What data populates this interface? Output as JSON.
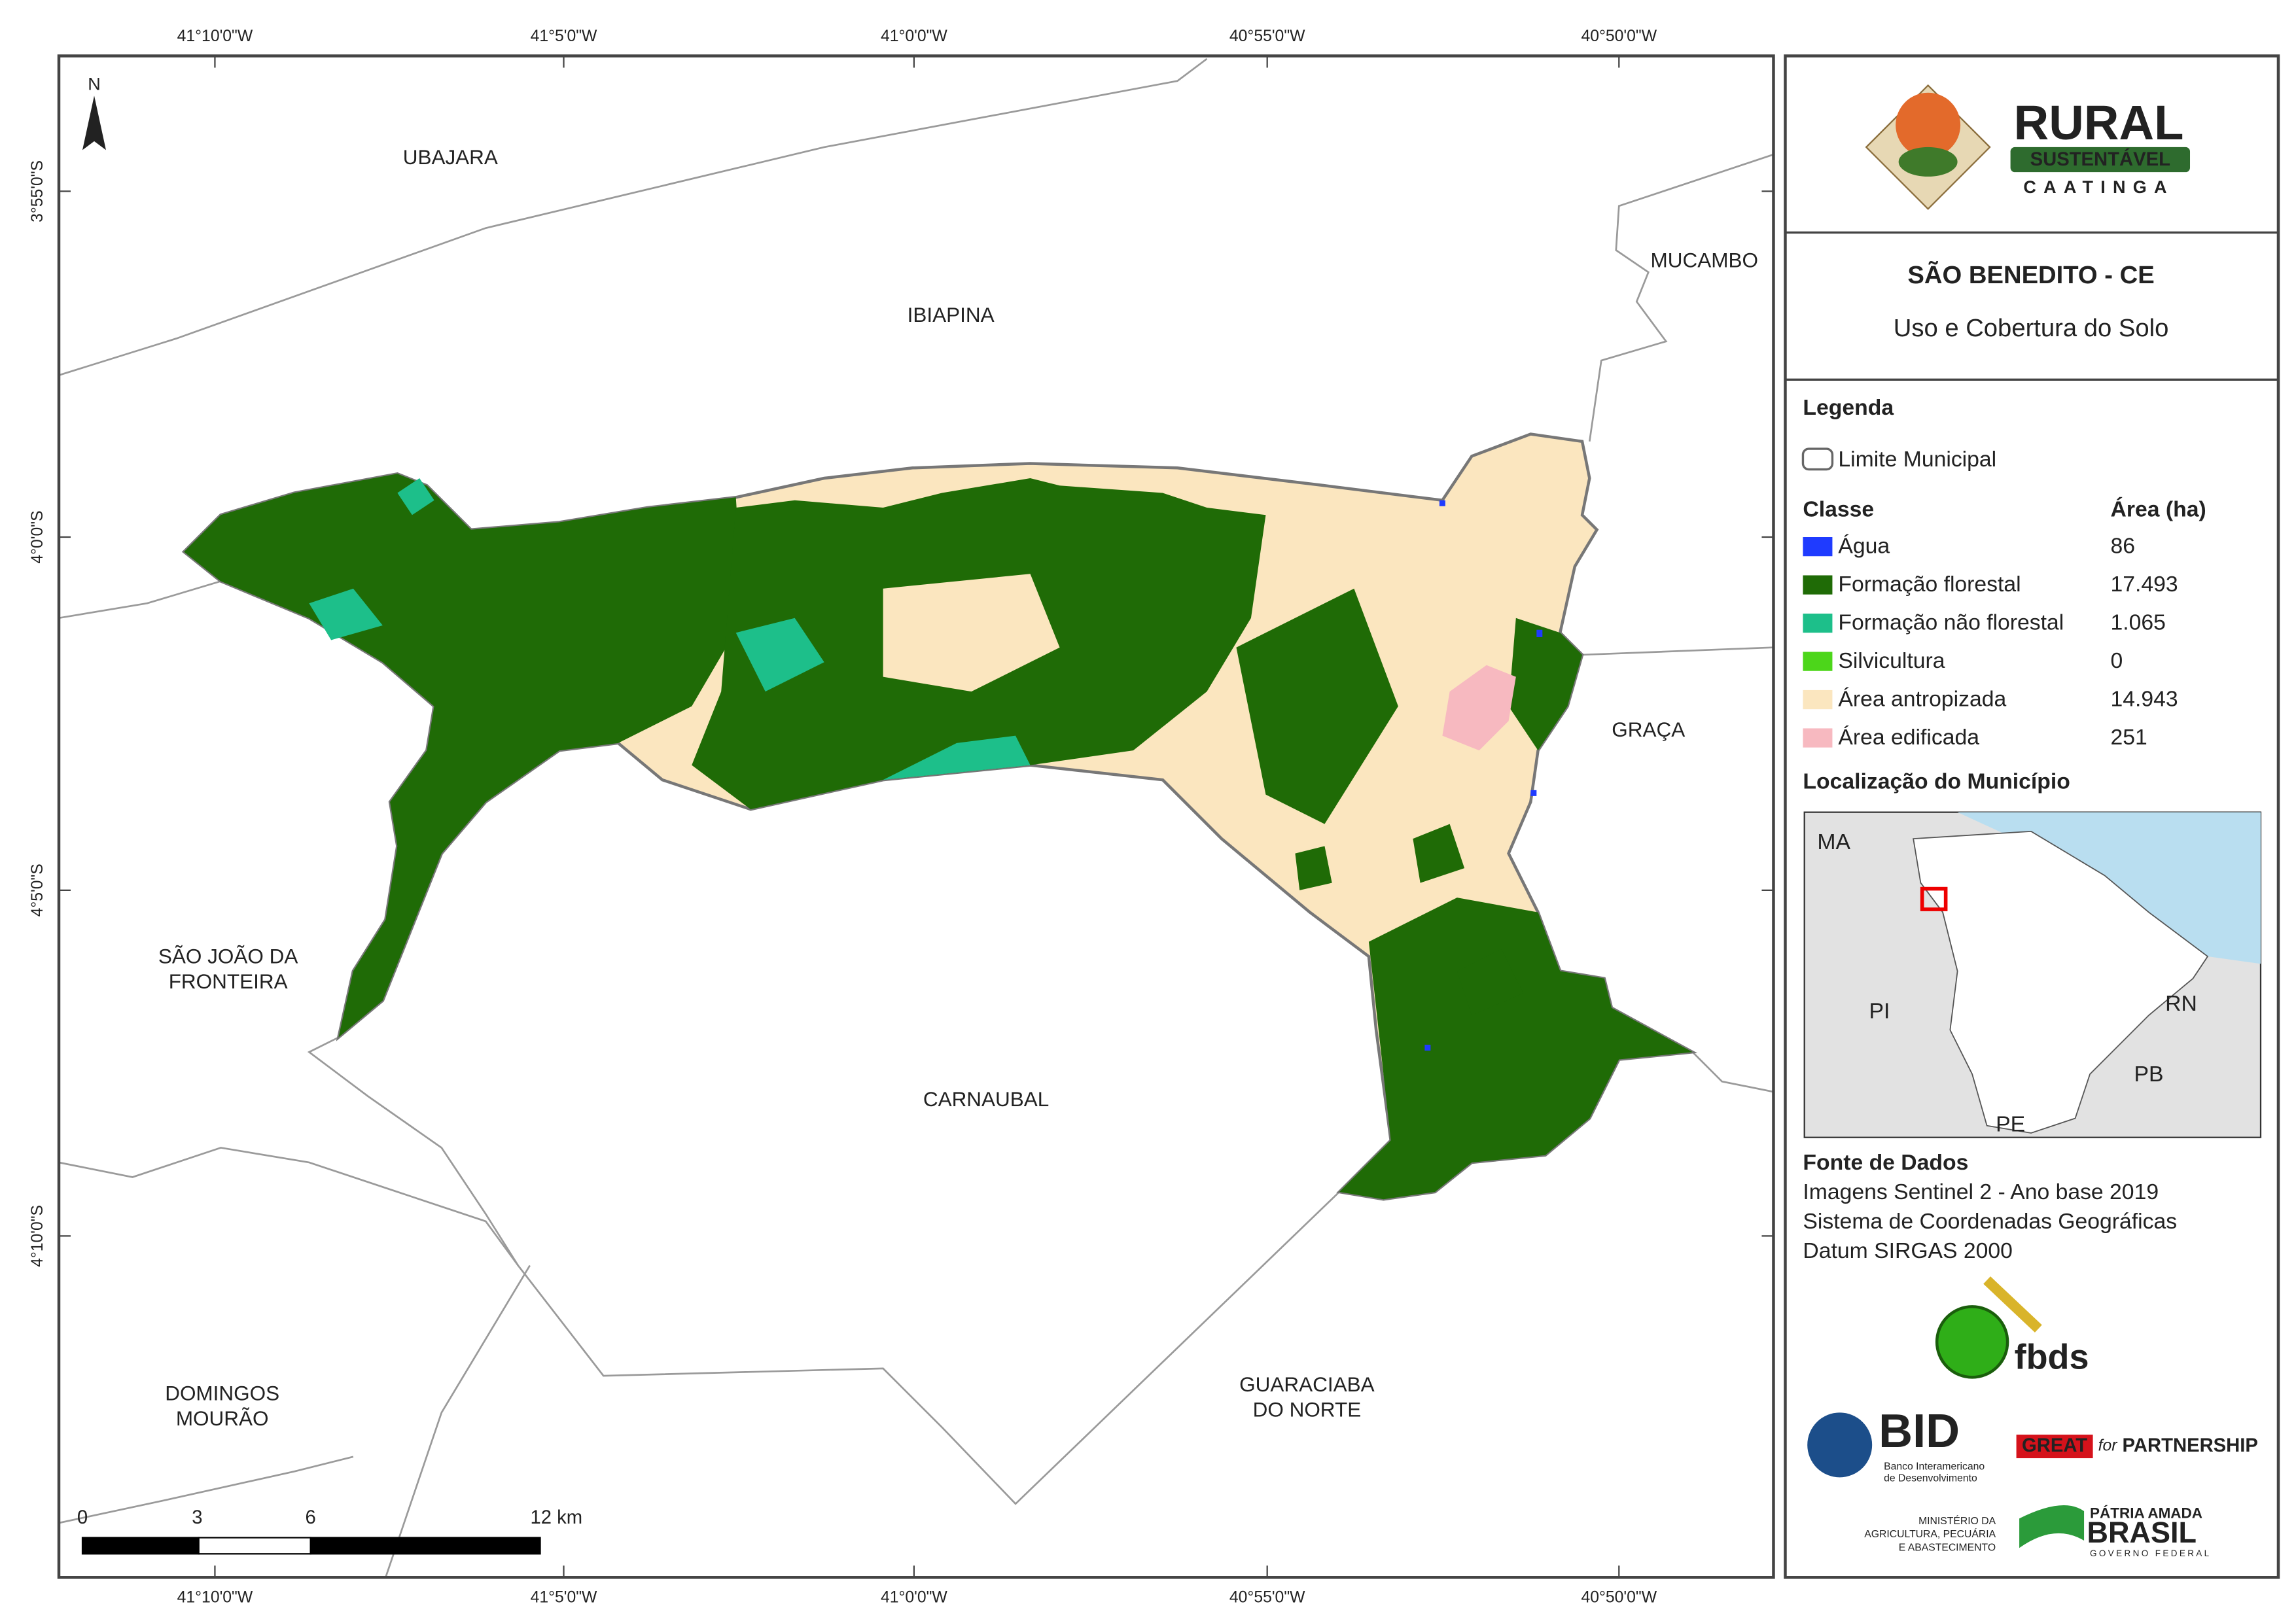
{
  "map": {
    "north": "N",
    "grid_labels": {
      "top": [
        "41°10'0\"W",
        "41°5'0\"W",
        "41°0'0\"W",
        "40°55'0\"W",
        "40°50'0\"W"
      ],
      "bottom": [
        "41°10'0\"W",
        "41°5'0\"W",
        "41°0'0\"W",
        "40°55'0\"W",
        "40°50'0\"W"
      ],
      "left": [
        "3°55'0\"S",
        "4°0'0\"S",
        "4°5'0\"S",
        "4°10'0\"S"
      ]
    },
    "places": [
      [
        "UBAJARA"
      ],
      [
        "IBIAPINA"
      ],
      [
        "MUCAMBO"
      ],
      [
        "GRAÇA"
      ],
      [
        "SÃO JOÃO DA",
        "FRONTEIRA"
      ],
      [
        "CARNAUBAL"
      ],
      [
        "DOMINGOS",
        "MOURÃO"
      ],
      [
        "GUARACIABA",
        "DO NORTE"
      ]
    ],
    "scale_bar": [
      "0",
      "3",
      "6",
      "12 km"
    ]
  },
  "panel": {
    "logo": {
      "title": "RURAL",
      "subtitle": "SUSTENTÁVEL",
      "region": "CAATINGA"
    },
    "title": "SÃO BENEDITO - CE",
    "subtitle": "Uso e Cobertura do Solo",
    "legend": {
      "heading": "Legenda",
      "boundary": "Limite Municipal",
      "class_heading": "Classe",
      "area_heading": "Área (ha)",
      "classes": [
        {
          "name": "Água",
          "area": "86",
          "color": "#1f3bff"
        },
        {
          "name": "Formação florestal",
          "area": "17.493",
          "color": "#1f6b06"
        },
        {
          "name": "Formação não florestal",
          "area": "1.065",
          "color": "#1dbf8a"
        },
        {
          "name": "Silvicultura",
          "area": "0",
          "color": "#4cd61a"
        },
        {
          "name": "Área antropizada",
          "area": "14.943",
          "color": "#fbe6bf"
        },
        {
          "name": "Área edificada",
          "area": "251",
          "color": "#f7b9c0"
        }
      ]
    },
    "location": {
      "heading": "Localização do Município",
      "labels": [
        "MA",
        "PI",
        "RN",
        "PB",
        "PE"
      ]
    },
    "sources": {
      "heading": "Fonte de Dados",
      "lines": [
        "Imagens Sentinel 2 - Ano base 2019",
        "Sistema de Coordenadas Geográficas",
        "Datum SIRGAS 2000"
      ]
    },
    "partners": {
      "fbds": "fbds",
      "bid": "BID",
      "bid_name": [
        "Banco Interamericano",
        "de Desenvolvimento"
      ],
      "great": "GREAT",
      "great_for": "for",
      "great_partnership": "PARTNERSHIP",
      "ministry": [
        "MINISTÉRIO DA",
        "AGRICULTURA, PECUÁRIA",
        "E ABASTECIMENTO"
      ],
      "brasil_top": "PÁTRIA AMADA",
      "brasil": "BRASIL",
      "brasil_bottom": "GOVERNO FEDERAL"
    }
  }
}
